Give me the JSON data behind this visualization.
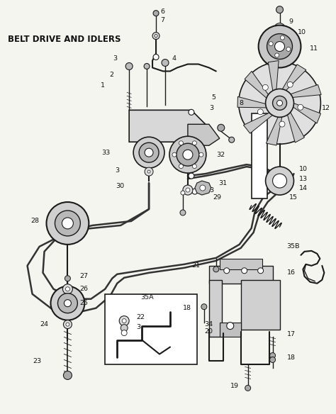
{
  "title": "BELT DRIVE AND IDLERS",
  "bg_color": "#f5f5f0",
  "line_color": "#1a1a1a",
  "label_color": "#111111",
  "title_fontsize": 8.5,
  "label_fontsize": 6.8,
  "fig_width": 4.74,
  "fig_height": 5.84
}
